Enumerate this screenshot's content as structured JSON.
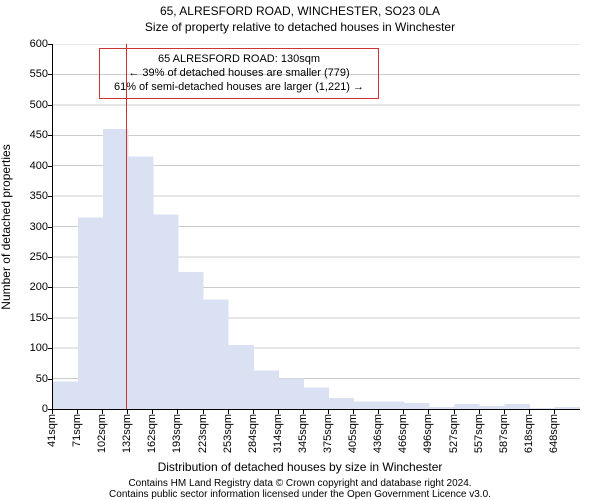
{
  "chart": {
    "type": "histogram",
    "title": "65, ALRESFORD ROAD, WINCHESTER, SO23 0LA",
    "subtitle": "Size of property relative to detached houses in Winchester",
    "xlabel": "Distribution of detached houses by size in Winchester",
    "ylabel": "Number of detached properties",
    "title_fontsize": 12,
    "subtitle_fontsize": 12,
    "label_fontsize": 12,
    "tick_fontsize": 11,
    "background_color": "#ffffff",
    "grid_color": "#cccccc",
    "bar_color": "#d9e1f2",
    "bar_border_color": "#d9e1f2",
    "axis_color": "#000000",
    "ylim": [
      0,
      600
    ],
    "yticks": [
      0,
      50,
      100,
      150,
      200,
      250,
      300,
      350,
      400,
      450,
      500,
      550,
      600
    ],
    "x_tick_labels": [
      "41sqm",
      "71sqm",
      "102sqm",
      "132sqm",
      "162sqm",
      "193sqm",
      "223sqm",
      "253sqm",
      "284sqm",
      "314sqm",
      "345sqm",
      "375sqm",
      "405sqm",
      "436sqm",
      "466sqm",
      "496sqm",
      "527sqm",
      "557sqm",
      "587sqm",
      "618sqm",
      "648sqm"
    ],
    "bin_width_sqm": 30.4,
    "x_domain_start": 41,
    "x_domain_end": 679,
    "values": [
      45,
      315,
      460,
      415,
      320,
      225,
      180,
      105,
      63,
      50,
      35,
      18,
      12,
      12,
      10,
      3,
      8,
      5,
      8,
      2,
      3
    ],
    "marker": {
      "x_value_sqm": 130,
      "color": "#cc3333",
      "line_width": 1.5
    },
    "callout": {
      "border_color": "#cc3333",
      "border_width": 1,
      "line1": "65 ALRESFORD ROAD: 130sqm",
      "line2": "← 39% of detached houses are smaller (779)",
      "line3": "61% of semi-detached houses are larger (1,221) →"
    },
    "footer_line1": "Contains HM Land Registry data © Crown copyright and database right 2024.",
    "footer_line2": "Contains public sector information licensed under the Open Government Licence v3.0."
  }
}
